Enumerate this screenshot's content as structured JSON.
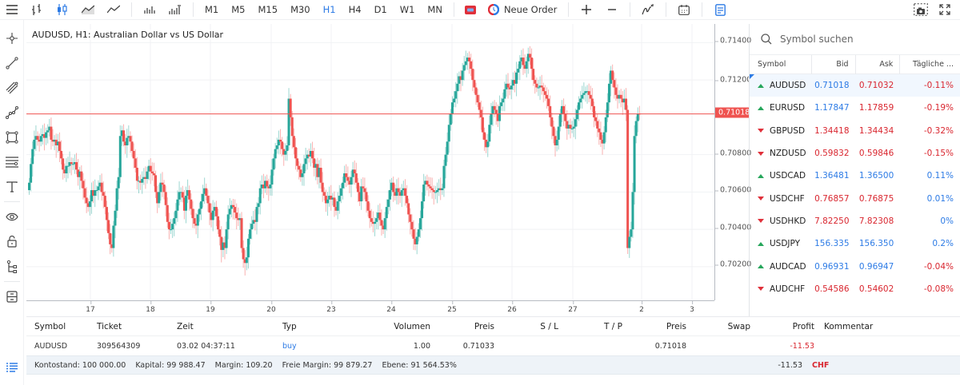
{
  "toolbar": {
    "timeframes": [
      "M1",
      "M5",
      "M15",
      "M30",
      "H1",
      "H4",
      "D1",
      "W1",
      "MN"
    ],
    "active_timeframe": "H1",
    "new_order_label": "Neue Order",
    "icons": [
      "menu-icon",
      "bar-chart-icon",
      "candlestick-icon",
      "area-chart-icon",
      "line-chart-icon",
      "volume-icon",
      "tick-volume-icon",
      "one-click-trading-icon",
      "new-order-icon",
      "zoom-in-icon",
      "zoom-out-icon",
      "indicators-icon",
      "calendar-icon",
      "journal-icon",
      "screenshot-icon",
      "fullscreen-icon"
    ]
  },
  "left_tools": [
    "crosshair-icon",
    "trend-line-icon",
    "parallel-channel-icon",
    "polyline-icon",
    "rectangle-icon",
    "fibonacci-icon",
    "text-icon",
    "visibility-icon",
    "lock-icon",
    "objects-tree-icon",
    "templates-icon"
  ],
  "chart": {
    "title": "AUDUSD, H1: Australian Dollar vs US Dollar",
    "current_price": "0.71018",
    "price_ticks": [
      "0.71400",
      "0.71200",
      "0.70800",
      "0.70600",
      "0.70400",
      "0.70200"
    ],
    "time_ticks": [
      "17",
      "18",
      "19",
      "20",
      "23",
      "24",
      "25",
      "26",
      "27",
      "2",
      "3"
    ],
    "colors": {
      "up": "#26a69a",
      "down": "#ef5350",
      "price_line": "#ef5350"
    }
  },
  "chart_data": {
    "type": "candlestick",
    "title": "AUDUSD, H1: Australian Dollar vs US Dollar",
    "xlabel": "",
    "ylabel": "",
    "ylim": [
      0.7002,
      0.715
    ],
    "x_ticks": [
      "17",
      "18",
      "19",
      "20",
      "23",
      "24",
      "25",
      "26",
      "27",
      "2",
      "3"
    ],
    "y_ticks": [
      0.714,
      0.712,
      0.708,
      0.706,
      0.704,
      0.702
    ],
    "current_price": 0.71018,
    "grid": true,
    "close_path": [
      0.7065,
      0.7075,
      0.7083,
      0.7088,
      0.709,
      0.7088,
      0.7087,
      0.709,
      0.7091,
      0.7089,
      0.7092,
      0.7093,
      0.7095,
      0.7088,
      0.7087,
      0.7088,
      0.7085,
      0.7087,
      0.7082,
      0.7078,
      0.7072,
      0.707,
      0.7074,
      0.7074,
      0.7076,
      0.7075,
      0.7075,
      0.7076,
      0.7072,
      0.7068,
      0.7071,
      0.7066,
      0.7062,
      0.7057,
      0.7054,
      0.7052,
      0.7055,
      0.7061,
      0.7058,
      0.7061,
      0.7061,
      0.7063,
      0.7065,
      0.706,
      0.7058,
      0.7052,
      0.7045,
      0.7038,
      0.7032,
      0.703,
      0.7042,
      0.705,
      0.7062,
      0.7068,
      0.709,
      0.7093,
      0.7087,
      0.7085,
      0.7089,
      0.709,
      0.7087,
      0.7082,
      0.7078,
      0.7073,
      0.7066,
      0.7066,
      0.7065,
      0.7067,
      0.7068,
      0.7067,
      0.7071,
      0.7074,
      0.7071,
      0.707,
      0.7069,
      0.706,
      0.7054,
      0.706,
      0.7065,
      0.7064,
      0.706,
      0.7053,
      0.7044,
      0.704,
      0.704,
      0.7043,
      0.7046,
      0.705,
      0.7056,
      0.706,
      0.706,
      0.7057,
      0.705,
      0.7058,
      0.7061,
      0.7056,
      0.7051,
      0.7046,
      0.7043,
      0.7042,
      0.7048,
      0.7051,
      0.7055,
      0.7059,
      0.7062,
      0.7058,
      0.7054,
      0.7049,
      0.7045,
      0.705,
      0.7052,
      0.7047,
      0.704,
      0.7036,
      0.7029,
      0.7033,
      0.703,
      0.704,
      0.7048,
      0.7051,
      0.7053,
      0.7052,
      0.7049,
      0.7046,
      0.7045,
      0.7046,
      0.703,
      0.7024,
      0.7022,
      0.7025,
      0.7035,
      0.704,
      0.7043,
      0.7045,
      0.7044,
      0.7052,
      0.7054,
      0.7062,
      0.7064,
      0.7062,
      0.7066,
      0.7063,
      0.7062,
      0.7064,
      0.7072,
      0.7078,
      0.7083,
      0.7085,
      0.7088,
      0.7087,
      0.7083,
      0.708,
      0.7082,
      0.7085,
      0.711,
      0.71,
      0.709,
      0.7084,
      0.7078,
      0.7074,
      0.7072,
      0.7068,
      0.707,
      0.7075,
      0.7078,
      0.708,
      0.7079,
      0.7082,
      0.7078,
      0.7073,
      0.7075,
      0.7068,
      0.7073,
      0.7065,
      0.706,
      0.7058,
      0.7054,
      0.7056,
      0.7058,
      0.7056,
      0.7057,
      0.7052,
      0.705,
      0.7055,
      0.7058,
      0.7062,
      0.7065,
      0.707,
      0.7068,
      0.7066,
      0.7064,
      0.7068,
      0.7072,
      0.707,
      0.7065,
      0.706,
      0.7055,
      0.7063,
      0.7062,
      0.706,
      0.7055,
      0.705,
      0.7046,
      0.7044,
      0.7043,
      0.7044,
      0.7046,
      0.7049,
      0.7045,
      0.7042,
      0.704,
      0.7046,
      0.7052,
      0.7056,
      0.7061,
      0.7065,
      0.706,
      0.7058,
      0.7062,
      0.706,
      0.7058,
      0.7061,
      0.7062,
      0.7058,
      0.7054,
      0.7048,
      0.7044,
      0.704,
      0.7035,
      0.7032,
      0.7036,
      0.704,
      0.7046,
      0.7055,
      0.7064,
      0.7066,
      0.7064,
      0.7063,
      0.7062,
      0.7061,
      0.706,
      0.706,
      0.7061,
      0.7062,
      0.7061,
      0.7062,
      0.7074,
      0.708,
      0.7087,
      0.7096,
      0.7102,
      0.7108,
      0.711,
      0.7114,
      0.7118,
      0.7122,
      0.712,
      0.7125,
      0.7128,
      0.713,
      0.7132,
      0.713,
      0.7126,
      0.712,
      0.7116,
      0.7112,
      0.7108,
      0.7104,
      0.71,
      0.7092,
      0.7088,
      0.7084,
      0.7087,
      0.7096,
      0.7102,
      0.7106,
      0.7104,
      0.7102,
      0.7098,
      0.7106,
      0.7108,
      0.711,
      0.7115,
      0.7118,
      0.7116,
      0.7115,
      0.7117,
      0.712,
      0.7118,
      0.7124,
      0.7126,
      0.713,
      0.7132,
      0.7128,
      0.7126,
      0.713,
      0.7134,
      0.7132,
      0.7126,
      0.712,
      0.7118,
      0.7116,
      0.7116,
      0.7117,
      0.7116,
      0.7114,
      0.7112,
      0.711,
      0.7106,
      0.71,
      0.7095,
      0.709,
      0.7085,
      0.7088,
      0.7095,
      0.7102,
      0.7106,
      0.7102,
      0.7098,
      0.7094,
      0.7096,
      0.7094,
      0.7094,
      0.7095,
      0.7099,
      0.7104,
      0.7108,
      0.711,
      0.7112,
      0.7113,
      0.7114,
      0.7114,
      0.7112,
      0.711,
      0.7106,
      0.71,
      0.7098,
      0.7094,
      0.7092,
      0.7088,
      0.7086,
      0.7092,
      0.71,
      0.7108,
      0.7118,
      0.7125,
      0.712,
      0.7116,
      0.7112,
      0.711,
      0.7112,
      0.711,
      0.7108,
      0.711,
      0.7104,
      0.703,
      0.7036,
      0.704,
      0.706,
      0.709,
      0.7098,
      0.7102,
      0.71018
    ]
  },
  "watchlist": {
    "search_placeholder": "Symbol suchen",
    "columns": [
      "Symbol",
      "Bid",
      "Ask",
      "Tägliche ..."
    ],
    "rows": [
      {
        "symbol": "AUDUSD",
        "dir": "up",
        "bid": "0.71018",
        "ask": "0.71032",
        "change": "-0.11%",
        "bid_color": "blue",
        "ask_color": "red",
        "change_color": "red",
        "selected": true
      },
      {
        "symbol": "EURUSD",
        "dir": "up",
        "bid": "1.17847",
        "ask": "1.17859",
        "change": "-0.19%",
        "bid_color": "blue",
        "ask_color": "red",
        "change_color": "red"
      },
      {
        "symbol": "GBPUSD",
        "dir": "down",
        "bid": "1.34418",
        "ask": "1.34434",
        "change": "-0.32%",
        "bid_color": "red",
        "ask_color": "red",
        "change_color": "red"
      },
      {
        "symbol": "NZDUSD",
        "dir": "down",
        "bid": "0.59832",
        "ask": "0.59846",
        "change": "-0.15%",
        "bid_color": "red",
        "ask_color": "red",
        "change_color": "red"
      },
      {
        "symbol": "USDCAD",
        "dir": "up",
        "bid": "1.36481",
        "ask": "1.36500",
        "change": "0.11%",
        "bid_color": "blue",
        "ask_color": "blue",
        "change_color": "blue"
      },
      {
        "symbol": "USDCHF",
        "dir": "down",
        "bid": "0.76857",
        "ask": "0.76875",
        "change": "0.01%",
        "bid_color": "red",
        "ask_color": "red",
        "change_color": "blue"
      },
      {
        "symbol": "USDHKD",
        "dir": "down",
        "bid": "7.82250",
        "ask": "7.82308",
        "change": "0%",
        "bid_color": "red",
        "ask_color": "red",
        "change_color": "blue"
      },
      {
        "symbol": "USDJPY",
        "dir": "up",
        "bid": "156.335",
        "ask": "156.350",
        "change": "0.2%",
        "bid_color": "blue",
        "ask_color": "blue",
        "change_color": "blue"
      },
      {
        "symbol": "AUDCAD",
        "dir": "up",
        "bid": "0.96931",
        "ask": "0.96947",
        "change": "-0.04%",
        "bid_color": "blue",
        "ask_color": "blue",
        "change_color": "red"
      },
      {
        "symbol": "AUDCHF",
        "dir": "down",
        "bid": "0.54586",
        "ask": "0.54602",
        "change": "-0.08%",
        "bid_color": "red",
        "ask_color": "red",
        "change_color": "red"
      }
    ]
  },
  "positions": {
    "columns": [
      "Symbol",
      "Ticket",
      "Zeit",
      "Typ",
      "Volumen",
      "Preis",
      "S / L",
      "T / P",
      "Preis",
      "Swap",
      "Profit",
      "Kommentar"
    ],
    "rows": [
      {
        "symbol": "AUDUSD",
        "ticket": "309564309",
        "zeit": "03.02 04:37:11",
        "typ": "buy",
        "volumen": "1.00",
        "preis": "0.71033",
        "sl": "",
        "tp": "",
        "preis_aktuell": "0.71018",
        "swap": "",
        "profit": "-11.53",
        "kommentar": ""
      }
    ],
    "summary": {
      "kontostand": "Kontostand: 100 000.00",
      "kapital": "Kapital: 99 988.47",
      "margin": "Margin: 109.20",
      "freie_margin": "Freie Margin: 99 879.27",
      "ebene": "Ebene: 91 564.53%",
      "profit": "-11.53",
      "currency": "CHF"
    }
  }
}
